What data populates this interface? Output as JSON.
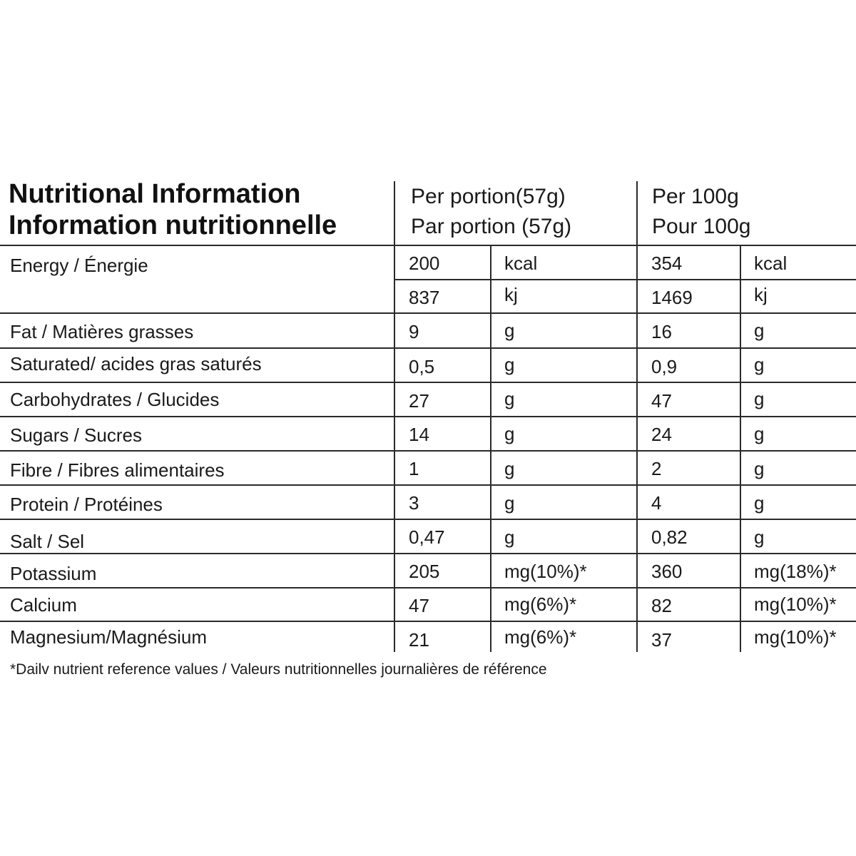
{
  "title": {
    "line1": "Nutritional Information",
    "line2": "Information nutritionnelle"
  },
  "headers": {
    "per_portion_en": "Per portion(57g)",
    "per_portion_fr": "Par portion (57g)",
    "per_100g_en": "Per 100g",
    "per_100g_fr": "Pour 100g"
  },
  "energy": {
    "label": "Energy / Énergie",
    "kcal": {
      "portion": "200",
      "portion_unit": "kcal",
      "per100": "354",
      "per100_unit": "kcal"
    },
    "kj": {
      "portion": "837",
      "portion_unit": "kj",
      "per100": "1469",
      "per100_unit": "kj"
    }
  },
  "rows": [
    {
      "label": "Fat / Matières grasses",
      "portion": "9",
      "portion_unit": "g",
      "per100": "16",
      "per100_unit": "g"
    },
    {
      "label": "Saturated/ acides gras saturés",
      "portion": "0,5",
      "portion_unit": "g",
      "per100": "0,9",
      "per100_unit": "g"
    },
    {
      "label": "Carbohydrates / Glucides",
      "portion": "27",
      "portion_unit": "g",
      "per100": "47",
      "per100_unit": "g"
    },
    {
      "label": "Sugars / Sucres",
      "portion": "14",
      "portion_unit": "g",
      "per100": "24",
      "per100_unit": "g"
    },
    {
      "label": "Fibre / Fibres alimentaires",
      "portion": "1",
      "portion_unit": "g",
      "per100": "2",
      "per100_unit": "g"
    },
    {
      "label": "Protein / Protéines",
      "portion": "3",
      "portion_unit": "g",
      "per100": "4",
      "per100_unit": "g"
    },
    {
      "label": "Salt / Sel",
      "portion": "0,47",
      "portion_unit": "g",
      "per100": "0,82",
      "per100_unit": "g"
    },
    {
      "label": "Potassium",
      "portion": "205",
      "portion_unit": "mg(10%)*",
      "per100": "360",
      "per100_unit": "mg(18%)*"
    },
    {
      "label": "Calcium",
      "portion": "47",
      "portion_unit": "mg(6%)*",
      "per100": "82",
      "per100_unit": "mg(10%)*"
    },
    {
      "label": "Magnesium/Magnésium",
      "portion": "21",
      "portion_unit": "mg(6%)*",
      "per100": "37",
      "per100_unit": "mg(10%)*"
    }
  ],
  "footnote": "*Dailv nutrient reference values / Valeurs nutritionnelles journalières de référence"
}
